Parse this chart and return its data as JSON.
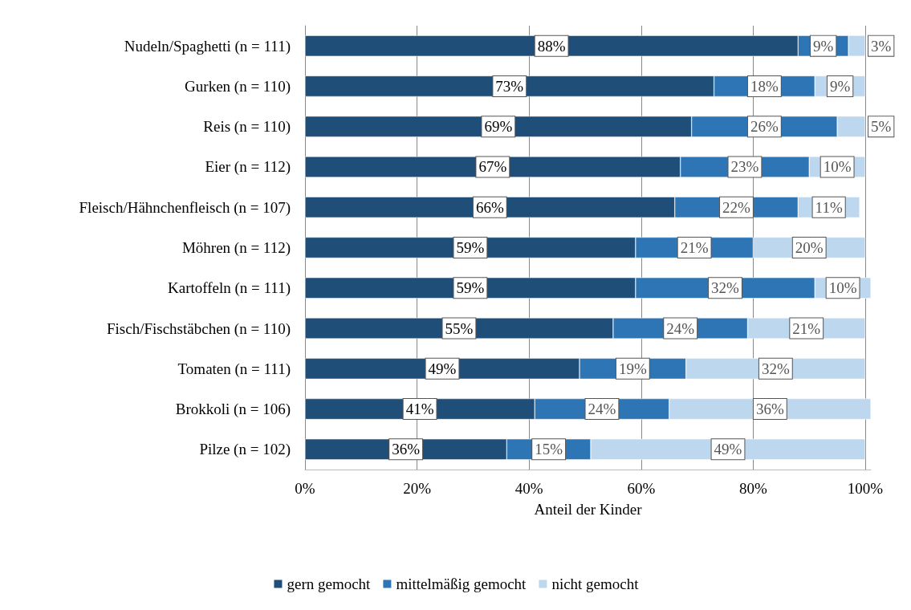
{
  "chart_data": {
    "type": "bar",
    "orientation": "horizontal",
    "stacked": true,
    "categories": [
      "Nudeln/Spaghetti (n = 111)",
      "Gurken (n = 110)",
      "Reis (n = 110)",
      "Eier (n = 112)",
      "Fleisch/Hähnchenfleisch (n = 107)",
      "Möhren (n = 112)",
      "Kartoffeln (n = 111)",
      "Fisch/Fischstäbchen (n = 110)",
      "Tomaten (n = 111)",
      "Brokkoli (n = 106)",
      "Pilze (n = 102)"
    ],
    "series": [
      {
        "name": "gern gemocht",
        "color": "#1f4e79",
        "values": [
          88,
          73,
          69,
          67,
          66,
          59,
          59,
          55,
          49,
          41,
          36
        ],
        "value_labels": [
          "88%",
          "73%",
          "69%",
          "67%",
          "66%",
          "59%",
          "59%",
          "55%",
          "49%",
          "41%",
          "36%"
        ]
      },
      {
        "name": "mittelmäßig gemocht",
        "color": "#2e75b6",
        "values": [
          9,
          18,
          26,
          23,
          22,
          21,
          32,
          24,
          19,
          24,
          15
        ],
        "value_labels": [
          "9%",
          "18%",
          "26%",
          "23%",
          "22%",
          "21%",
          "32%",
          "24%",
          "19%",
          "24%",
          "15%"
        ]
      },
      {
        "name": "nicht gemocht",
        "color": "#bdd7ee",
        "values": [
          3,
          9,
          5,
          10,
          11,
          20,
          10,
          21,
          32,
          36,
          49
        ],
        "value_labels": [
          "3%",
          "9%",
          "5%",
          "10%",
          "11%",
          "20%",
          "10%",
          "21%",
          "32%",
          "36%",
          "49%"
        ]
      }
    ],
    "xlabel": "Anteil der Kinder",
    "xlim": [
      0,
      101
    ],
    "xticks": [
      {
        "value": 0,
        "label": "0%"
      },
      {
        "value": 20,
        "label": "20%"
      },
      {
        "value": 40,
        "label": "40%"
      },
      {
        "value": 60,
        "label": "60%"
      },
      {
        "value": 80,
        "label": "80%"
      },
      {
        "value": 100,
        "label": "100%"
      }
    ],
    "grid": "x",
    "legend": "bottom"
  }
}
